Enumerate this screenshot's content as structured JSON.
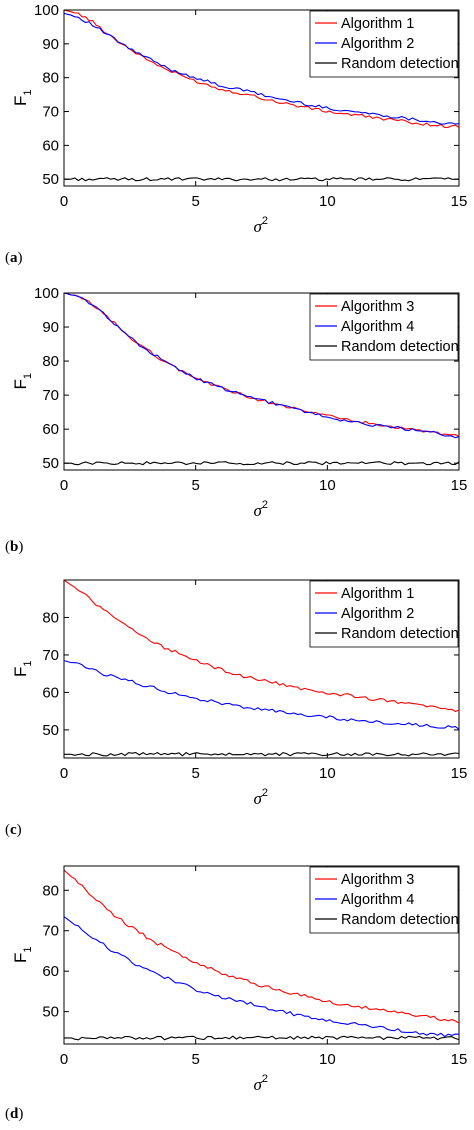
{
  "chart_data": [
    {
      "panel": "(a)",
      "panel_letter": "a",
      "type": "line",
      "xlabel_base": "σ",
      "xlabel_sup": "2",
      "ylabel_base": "F",
      "ylabel_sub": "1",
      "xlim": [
        0,
        15
      ],
      "ylim": [
        48,
        100
      ],
      "xticks": [
        0,
        5,
        10,
        15
      ],
      "yticks": [
        50,
        60,
        70,
        80,
        90,
        100
      ],
      "legend_position": "top-right",
      "series": [
        {
          "name": "Algorithm 1",
          "color": "#ff0000",
          "x": [
            0,
            0.5,
            1,
            1.5,
            2,
            2.5,
            3,
            3.5,
            4,
            5,
            6,
            7,
            8,
            9,
            10,
            11,
            12,
            13,
            14,
            15
          ],
          "y": [
            100,
            99,
            97,
            94,
            91,
            88.5,
            86,
            84,
            82,
            79,
            76.5,
            75,
            73,
            71.5,
            70,
            69,
            68,
            67,
            66,
            65.5
          ]
        },
        {
          "name": "Algorithm 2",
          "color": "#0000ff",
          "x": [
            0,
            0.5,
            1,
            1.5,
            2,
            2.5,
            3,
            3.5,
            4,
            5,
            6,
            7,
            8,
            9,
            10,
            11,
            12,
            13,
            14,
            15
          ],
          "y": [
            99,
            98,
            96,
            93.5,
            91,
            88.5,
            86.5,
            84.5,
            82.5,
            80,
            77.5,
            76,
            74,
            72.5,
            71,
            70,
            69,
            68,
            67,
            66
          ]
        },
        {
          "name": "Random detection",
          "color": "#000000",
          "x": [
            0,
            15
          ],
          "y": [
            50,
            50
          ]
        }
      ]
    },
    {
      "panel": "(b)",
      "panel_letter": "b",
      "type": "line",
      "xlabel_base": "σ",
      "xlabel_sup": "2",
      "ylabel_base": "F",
      "ylabel_sub": "1",
      "xlim": [
        0,
        15
      ],
      "ylim": [
        48,
        100
      ],
      "xticks": [
        0,
        5,
        10,
        15
      ],
      "yticks": [
        50,
        60,
        70,
        80,
        90,
        100
      ],
      "legend_position": "top-right",
      "series": [
        {
          "name": "Algorithm 3",
          "color": "#ff0000",
          "x": [
            0,
            0.5,
            1,
            1.5,
            2,
            2.5,
            3,
            3.5,
            4,
            5,
            6,
            7,
            8,
            9,
            10,
            11,
            12,
            13,
            14,
            15
          ],
          "y": [
            100,
            99,
            97,
            94,
            90.5,
            87,
            84,
            81.5,
            79,
            75,
            72,
            69.5,
            67.5,
            65.5,
            64,
            62.5,
            61,
            60,
            59,
            58
          ]
        },
        {
          "name": "Algorithm 4",
          "color": "#0000ff",
          "x": [
            0,
            0.5,
            1,
            1.5,
            2,
            2.5,
            3,
            3.5,
            4,
            5,
            6,
            7,
            8,
            9,
            10,
            11,
            12,
            13,
            14,
            15
          ],
          "y": [
            100,
            99,
            97,
            94,
            90.5,
            87,
            84,
            81.5,
            79,
            75,
            72,
            69.5,
            67.5,
            65.5,
            63.5,
            62,
            61,
            60,
            59,
            57.5
          ]
        },
        {
          "name": "Random detection",
          "color": "#000000",
          "x": [
            0,
            15
          ],
          "y": [
            50,
            50
          ]
        }
      ]
    },
    {
      "panel": "(c)",
      "panel_letter": "c",
      "type": "line",
      "xlabel_base": "σ",
      "xlabel_sup": "2",
      "ylabel_base": "F",
      "ylabel_sub": "1",
      "xlim": [
        0,
        15
      ],
      "ylim": [
        42.5,
        90
      ],
      "xticks": [
        0,
        5,
        10,
        15
      ],
      "yticks": [
        50,
        60,
        70,
        80
      ],
      "legend_position": "top-right",
      "series": [
        {
          "name": "Algorithm 1",
          "color": "#ff0000",
          "x": [
            0,
            0.5,
            1,
            1.5,
            2,
            2.5,
            3,
            3.5,
            4,
            5,
            6,
            7,
            8,
            9,
            10,
            11,
            12,
            13,
            14,
            15
          ],
          "y": [
            90,
            87.5,
            85,
            82,
            79.5,
            77,
            75,
            73,
            71.5,
            68.5,
            66,
            64,
            62.5,
            61,
            60,
            59,
            58,
            57,
            56,
            55
          ]
        },
        {
          "name": "Algorithm 2",
          "color": "#0000ff",
          "x": [
            0,
            0.5,
            1,
            1.5,
            2,
            2.5,
            3,
            3.5,
            4,
            5,
            6,
            7,
            8,
            9,
            10,
            11,
            12,
            13,
            14,
            15
          ],
          "y": [
            68.5,
            67.5,
            66.5,
            65,
            64,
            63,
            62,
            61,
            60,
            58.5,
            57,
            56,
            55,
            54,
            53.5,
            52.5,
            52,
            51.5,
            51,
            50.5
          ]
        },
        {
          "name": "Random detection",
          "color": "#000000",
          "x": [
            0,
            15
          ],
          "y": [
            43.5,
            43.5
          ]
        }
      ]
    },
    {
      "panel": "(d)",
      "panel_letter": "d",
      "type": "line",
      "xlabel_base": "σ",
      "xlabel_sup": "2",
      "ylabel_base": "F",
      "ylabel_sub": "1",
      "xlim": [
        0,
        15
      ],
      "ylim": [
        42,
        86
      ],
      "xticks": [
        0,
        5,
        10,
        15
      ],
      "yticks": [
        50,
        60,
        70,
        80
      ],
      "legend_position": "top-right",
      "series": [
        {
          "name": "Algorithm 3",
          "color": "#ff0000",
          "x": [
            0,
            0.5,
            1,
            1.5,
            2,
            2.5,
            3,
            3.5,
            4,
            5,
            6,
            7,
            8,
            9,
            10,
            11,
            12,
            13,
            14,
            15
          ],
          "y": [
            85,
            82,
            79,
            76,
            73.5,
            71,
            69,
            67,
            65.5,
            62,
            59.5,
            57.5,
            55.5,
            54,
            52.5,
            51.5,
            50.5,
            49.5,
            48.5,
            47.5
          ]
        },
        {
          "name": "Algorithm 4",
          "color": "#0000ff",
          "x": [
            0,
            0.5,
            1,
            1.5,
            2,
            2.5,
            3,
            3.5,
            4,
            5,
            6,
            7,
            8,
            9,
            10,
            11,
            12,
            13,
            14,
            15
          ],
          "y": [
            73.5,
            71,
            68.5,
            66.5,
            64.5,
            62.5,
            61,
            59.5,
            58,
            55.5,
            53.5,
            52,
            50.5,
            49,
            48,
            47,
            46,
            45,
            44.5,
            44
          ]
        },
        {
          "name": "Random detection",
          "color": "#000000",
          "x": [
            0,
            15
          ],
          "y": [
            43.5,
            43.5
          ]
        }
      ]
    }
  ]
}
